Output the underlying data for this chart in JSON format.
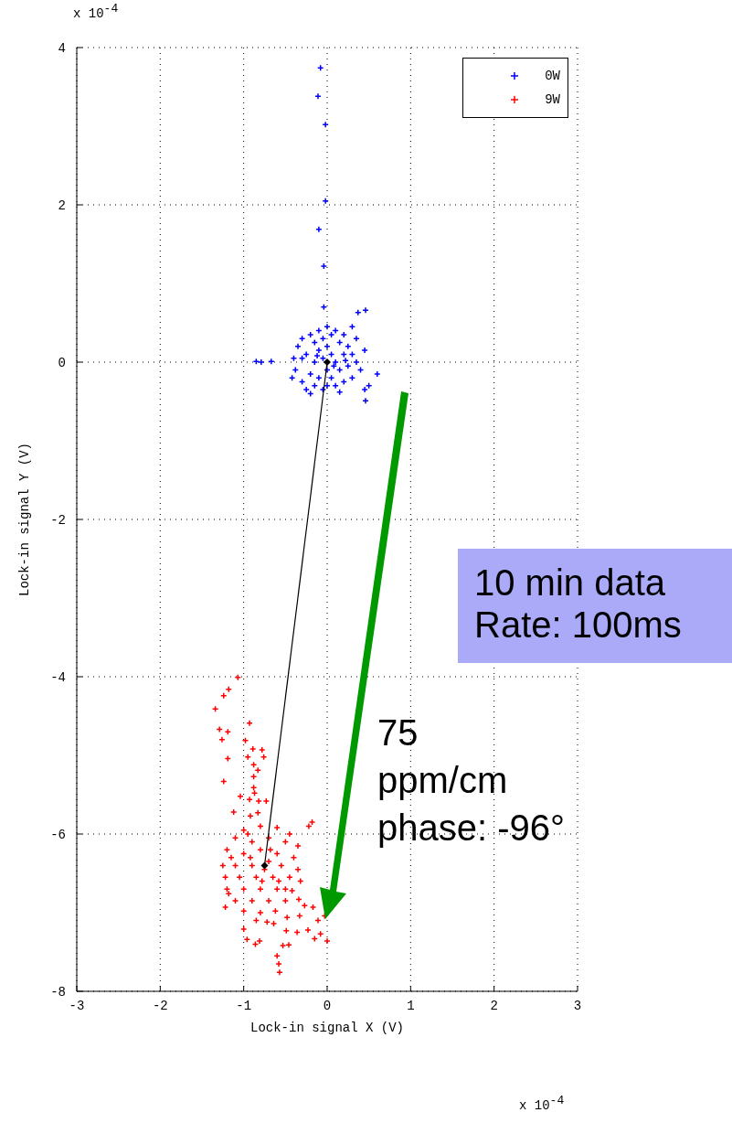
{
  "chart_data": {
    "type": "scatter",
    "xlabel": "Lock-in signal X (V)",
    "ylabel": "Lock-in signal Y (V)",
    "xlim": [
      -3,
      3
    ],
    "xticks": [
      -3,
      -2,
      -1,
      0,
      1,
      2,
      3
    ],
    "ylim": [
      -8,
      4
    ],
    "yticks": [
      -8,
      -6,
      -4,
      -2,
      0,
      2,
      4
    ],
    "grid": true,
    "legend": "top right",
    "marker": "cross",
    "series": [
      {
        "name": "0W",
        "color": "#0000ff",
        "x": [
          -0.08,
          -0.11,
          -0.02,
          -0.02,
          -0.1,
          -0.04,
          -0.04,
          -0.85,
          -0.79,
          -0.67,
          0.46,
          0.37,
          0.6,
          0.46,
          -0.4,
          -0.38,
          -0.35,
          -0.3,
          -0.3,
          -0.25,
          -0.25,
          -0.2,
          -0.2,
          -0.15,
          -0.15,
          -0.15,
          -0.1,
          -0.1,
          -0.1,
          -0.05,
          -0.05,
          -0.05,
          0,
          0,
          0,
          0,
          0.05,
          0.05,
          0.05,
          0.1,
          0.1,
          0.1,
          0.15,
          0.15,
          0.2,
          0.2,
          0.2,
          0.25,
          0.25,
          0.3,
          0.3,
          0.35,
          0.35,
          0.4,
          0.45,
          -0.42,
          0.15,
          -0.2,
          0.3,
          0.45,
          0.5,
          -0.3,
          0.08,
          -0.12,
          0.22
        ],
        "values": [
          3.74,
          3.38,
          3.02,
          2.05,
          1.69,
          1.22,
          0.7,
          0.01,
          0.0,
          0.01,
          0.66,
          0.63,
          -0.15,
          -0.49,
          0.05,
          -0.1,
          0.2,
          0.3,
          -0.25,
          0.1,
          -0.35,
          0.35,
          -0.15,
          0.25,
          0,
          -0.3,
          0.4,
          0.15,
          -0.2,
          0.3,
          0.05,
          -0.35,
          0.45,
          0.2,
          -0.1,
          -0.3,
          0.35,
          0.1,
          -0.2,
          0.4,
          0,
          -0.3,
          0.25,
          -0.1,
          0.35,
          0.1,
          -0.25,
          0.2,
          -0.05,
          0.1,
          -0.2,
          0.3,
          0,
          -0.1,
          0.15,
          -0.2,
          -0.38,
          -0.4,
          0.45,
          -0.35,
          -0.3,
          0.05,
          -0.05,
          0.08,
          0.02
        ]
      },
      {
        "name": "9W",
        "color": "#ff0000",
        "x": [
          -1.07,
          -1.18,
          -1.24,
          -1.34,
          -1.29,
          -1.26,
          -1.19,
          -0.93,
          -1.19,
          -1.24,
          -0.98,
          -0.89,
          -0.78,
          -0.95,
          -0.76,
          -0.88,
          -0.83,
          -0.88,
          -0.88,
          -0.87,
          -1.04,
          -0.93,
          -0.82,
          -0.73,
          -1.12,
          -0.92,
          -0.83,
          -0.18,
          -0.22,
          -1.22,
          -1.18,
          -1.0,
          -0.96,
          -0.86,
          -0.81,
          -0.6,
          -0.58,
          -0.57,
          -0.53,
          -0.46,
          -0.36,
          -0.23,
          -0.15,
          -0.08,
          0.0,
          -0.03,
          -0.11,
          -0.17,
          -0.27,
          -0.34,
          -0.33,
          -0.48,
          -0.64,
          -0.49,
          -1.0,
          -0.8,
          -0.6,
          -0.45,
          -1.1,
          -0.9,
          -0.7,
          -0.5,
          -0.35,
          -1.2,
          -1.0,
          -0.8,
          -0.6,
          -0.4,
          -1.25,
          -1.1,
          -0.9,
          -0.7,
          -0.55,
          -0.35,
          -1.22,
          -1.05,
          -0.85,
          -0.65,
          -0.45,
          -0.32,
          -1.2,
          -1.0,
          -0.8,
          -0.6,
          -0.42,
          -1.1,
          -0.9,
          -0.7,
          -0.5,
          -1.0,
          -0.8,
          -0.62,
          -0.85,
          -0.72,
          -0.95,
          -0.75,
          -0.78,
          -0.68,
          -0.92,
          -0.58,
          -1.15,
          -0.5
        ],
        "values": [
          -4.01,
          -4.16,
          -4.24,
          -4.41,
          -4.67,
          -4.8,
          -4.7,
          -4.59,
          -5.04,
          -5.33,
          -4.81,
          -4.92,
          -4.93,
          -5.02,
          -5.02,
          -5.12,
          -5.19,
          -5.27,
          -5.41,
          -5.48,
          -5.52,
          -5.56,
          -5.58,
          -5.58,
          -5.72,
          -5.77,
          -5.73,
          -5.85,
          -5.9,
          -6.93,
          -6.76,
          -7.21,
          -7.34,
          -7.4,
          -7.36,
          -7.55,
          -7.65,
          -7.76,
          -7.42,
          -7.41,
          -7.25,
          -7.22,
          -7.33,
          -7.27,
          -7.36,
          -7.04,
          -7.1,
          -6.93,
          -6.91,
          -6.83,
          -7.04,
          -7.06,
          -7.14,
          -7.23,
          -5.95,
          -5.9,
          -5.92,
          -6.0,
          -6.05,
          -6.1,
          -6.05,
          -6.1,
          -6.15,
          -6.2,
          -6.25,
          -6.2,
          -6.25,
          -6.3,
          -6.4,
          -6.4,
          -6.4,
          -6.35,
          -6.4,
          -6.45,
          -6.55,
          -6.55,
          -6.55,
          -6.55,
          -6.55,
          -6.6,
          -6.7,
          -6.7,
          -6.7,
          -6.7,
          -6.72,
          -6.85,
          -6.85,
          -6.85,
          -6.85,
          -6.98,
          -7.0,
          -6.98,
          -7.1,
          -7.12,
          -6.0,
          -6.45,
          -6.6,
          -6.2,
          -6.3,
          -6.6,
          -6.3,
          -6.7
        ]
      },
      {
        "type": "line",
        "color": "#000000",
        "marker": "diamond",
        "x": [
          0,
          -0.75
        ],
        "values": [
          0,
          -6.4
        ]
      }
    ],
    "annotations": [
      "x 10$^{-4}$",
      "x 10$^{-4}$",
      "10 min data\nRate: 100ms",
      "75\nppm/cm\nphase: -96°"
    ]
  }
}
